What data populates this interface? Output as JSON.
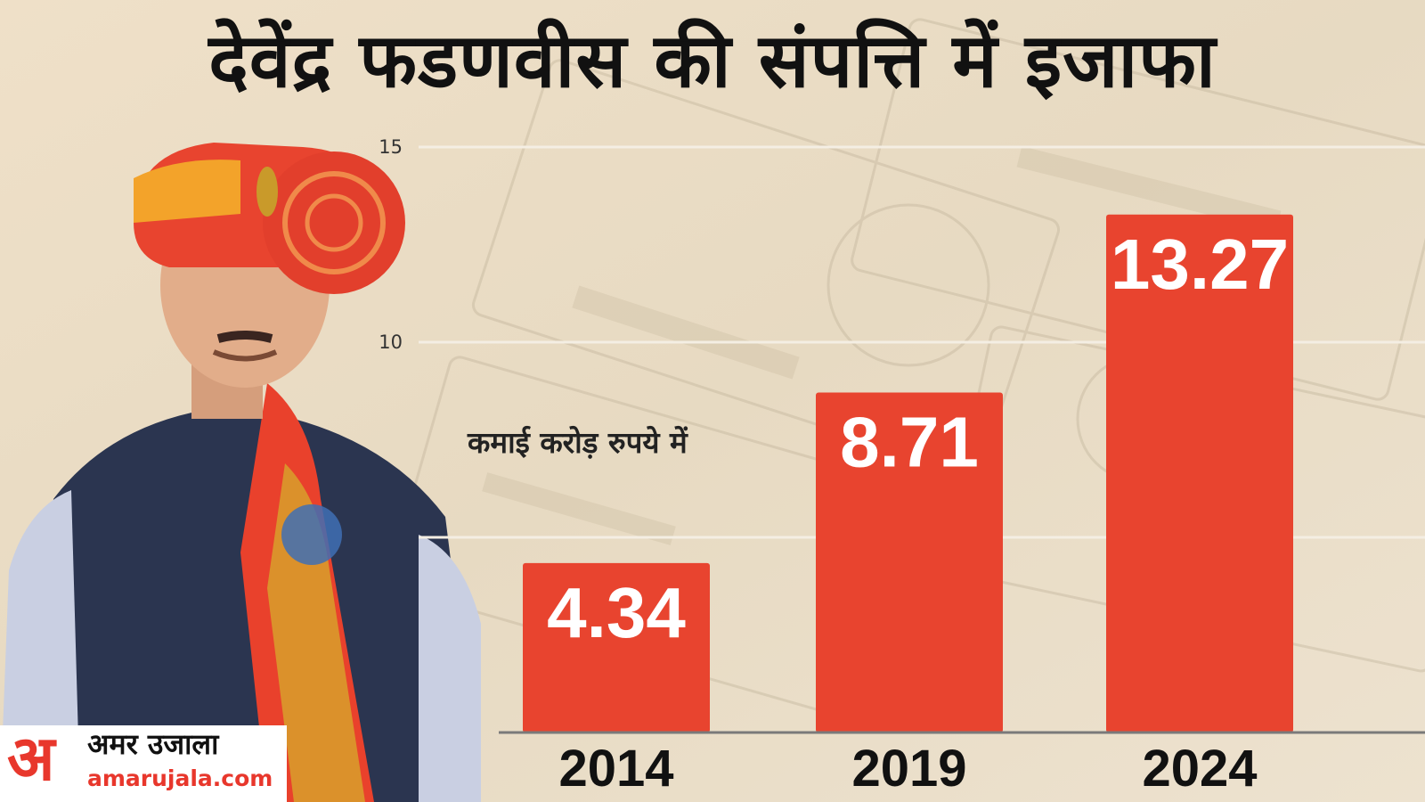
{
  "title": "देवेंद्र फडणवीस की संपत्ति में इजाफा",
  "unit_label": "कमाई करोड़ रुपये में",
  "colors": {
    "bar": "#e8442f",
    "bar_label": "#ffffff",
    "gridline": "#f4eee3",
    "baseline": "#7a7a7a",
    "title": "#111111",
    "logo_accent": "#e8372c"
  },
  "logo": {
    "mark": "अ",
    "name": "अमर उजाला",
    "url": "amarujala.com"
  },
  "chart_data": {
    "type": "bar",
    "title": "देवेंद्र फडणवीस की संपत्ति में इजाफा",
    "ylabel": "कमाई करोड़ रुपये में",
    "xlabel": "",
    "categories": [
      "2014",
      "2019",
      "2024"
    ],
    "values": [
      4.34,
      8.71,
      13.27
    ],
    "value_labels": [
      "4.34",
      "8.71",
      "13.27"
    ],
    "ylim": [
      0,
      15
    ],
    "yticks": [
      {
        "value": 5,
        "label": ""
      },
      {
        "value": 10,
        "label": "10"
      },
      {
        "value": 15,
        "label": "15"
      }
    ],
    "grid": true,
    "legend": "none"
  }
}
